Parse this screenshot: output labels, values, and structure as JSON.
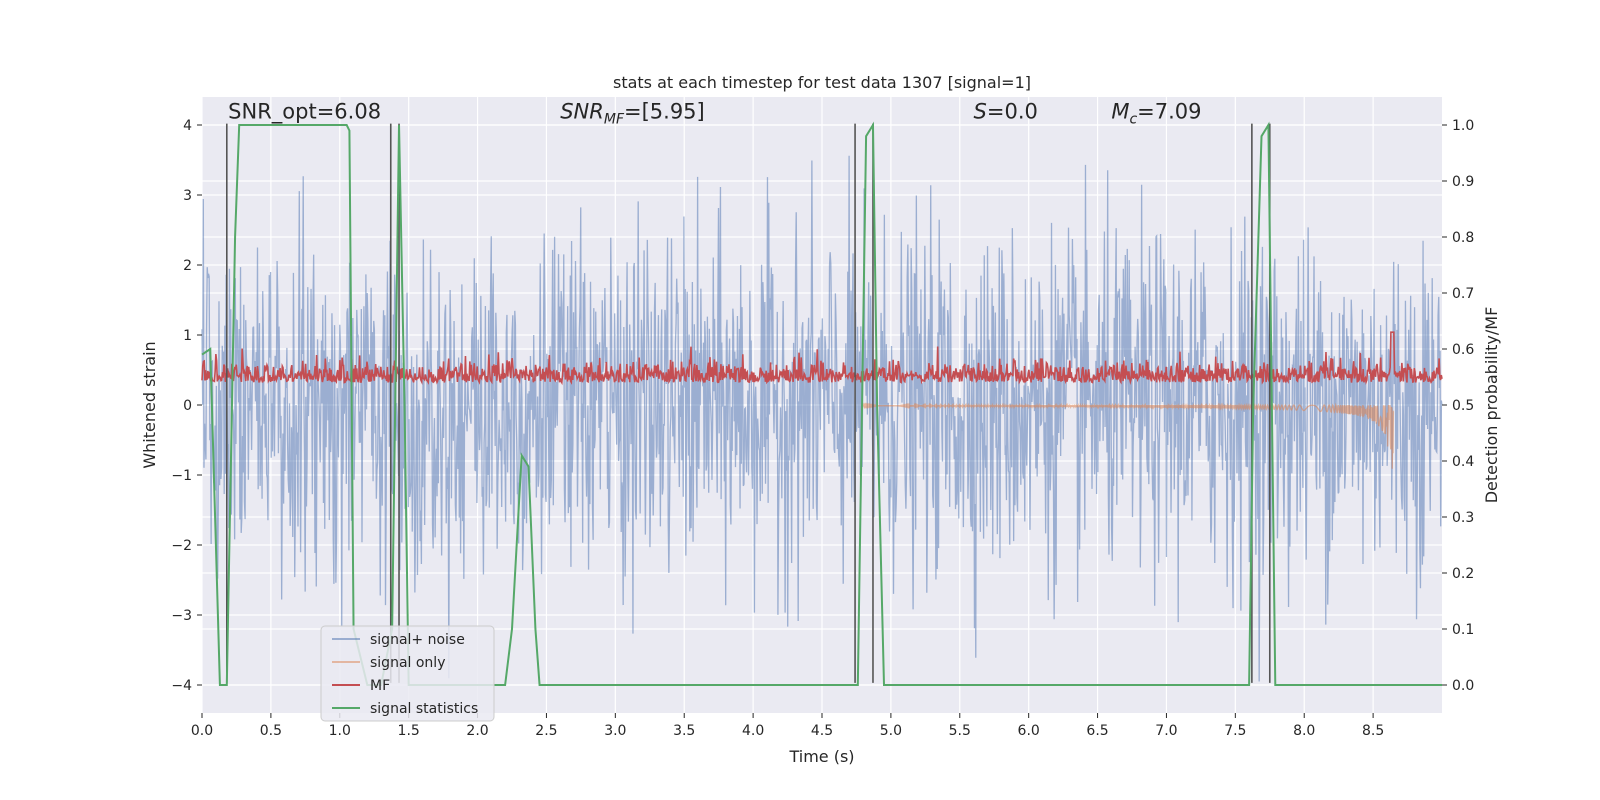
{
  "chart_data": {
    "type": "line",
    "title": "stats at each timestep for test data 1307 [signal=1]",
    "xlabel": "Time (s)",
    "ylabel": "Whitened strain",
    "y2label": "Detection probability/MF",
    "xlim": [
      0.0,
      9.0
    ],
    "ylim": [
      -4.4,
      4.4
    ],
    "y2lim": [
      -0.05,
      1.05
    ],
    "xticks": [
      "0.0",
      "0.5",
      "1.0",
      "1.5",
      "2.0",
      "2.5",
      "3.0",
      "3.5",
      "4.0",
      "4.5",
      "5.0",
      "5.5",
      "6.0",
      "6.5",
      "7.0",
      "7.5",
      "8.0",
      "8.5"
    ],
    "yticks": [
      "4",
      "3",
      "2",
      "1",
      "0",
      "−1",
      "−2",
      "−3",
      "−4"
    ],
    "y2ticks": [
      "1.0",
      "0.9",
      "0.8",
      "0.7",
      "0.6",
      "0.5",
      "0.4",
      "0.3",
      "0.2",
      "0.1",
      "0.0"
    ],
    "grid": true,
    "legend_placement": "lower-left",
    "annotations": [
      {
        "text": "SNR_opt=6.08",
        "x": 0.19
      },
      {
        "text": "SNR",
        "sub": "MF",
        "suffix": "=[5.95]",
        "x": 2.6,
        "italic": true
      },
      {
        "text": "S",
        "suffix": "=0.0",
        "x": 5.6,
        "italic": true
      },
      {
        "text": "M",
        "sub": "c",
        "suffix": "=7.09",
        "x": 6.6,
        "italic": true
      }
    ],
    "series": [
      {
        "name": "signal+ noise",
        "color": "#4c72b0",
        "axis": "left",
        "kind": "noise",
        "amplitude": 1.2,
        "range": [
          0.0,
          9.0
        ]
      },
      {
        "name": "signal only",
        "color": "#dd8452",
        "axis": "left",
        "kind": "chirp",
        "start": 4.8,
        "end": 8.65,
        "peak": -0.95
      },
      {
        "name": "MF",
        "color": "#c44e52",
        "axis": "right",
        "kind": "mf",
        "baseline": 0.54,
        "spike": {
          "x": 8.64,
          "y": 0.63
        }
      },
      {
        "name": "signal statistics",
        "color": "#55a868",
        "axis": "right",
        "kind": "line",
        "x": [
          0.0,
          0.06,
          0.13,
          0.18,
          0.24,
          0.27,
          0.3,
          1.05,
          1.07,
          1.1,
          1.2,
          1.3,
          1.38,
          1.43,
          1.47,
          1.5,
          1.6,
          2.2,
          2.25,
          2.32,
          2.37,
          2.42,
          2.45,
          2.6,
          4.73,
          4.76,
          4.82,
          4.87,
          4.9,
          4.95,
          5.0,
          7.6,
          7.63,
          7.69,
          7.74,
          7.79,
          7.85,
          9.0
        ],
        "y": [
          0.59,
          0.6,
          0.0,
          0.0,
          0.8,
          1.0,
          1.0,
          1.0,
          0.99,
          0.1,
          0.0,
          0.0,
          0.1,
          1.0,
          0.5,
          0.0,
          0.0,
          0.0,
          0.1,
          0.41,
          0.39,
          0.1,
          0.0,
          0.0,
          0.0,
          0.0,
          0.98,
          1.0,
          0.5,
          0.0,
          0.0,
          0.0,
          0.5,
          0.98,
          1.0,
          0.0,
          0.0,
          0.0
        ]
      }
    ],
    "markers_x": [
      0.18,
      1.37,
      1.43,
      4.74,
      4.87,
      7.62,
      7.75
    ]
  }
}
